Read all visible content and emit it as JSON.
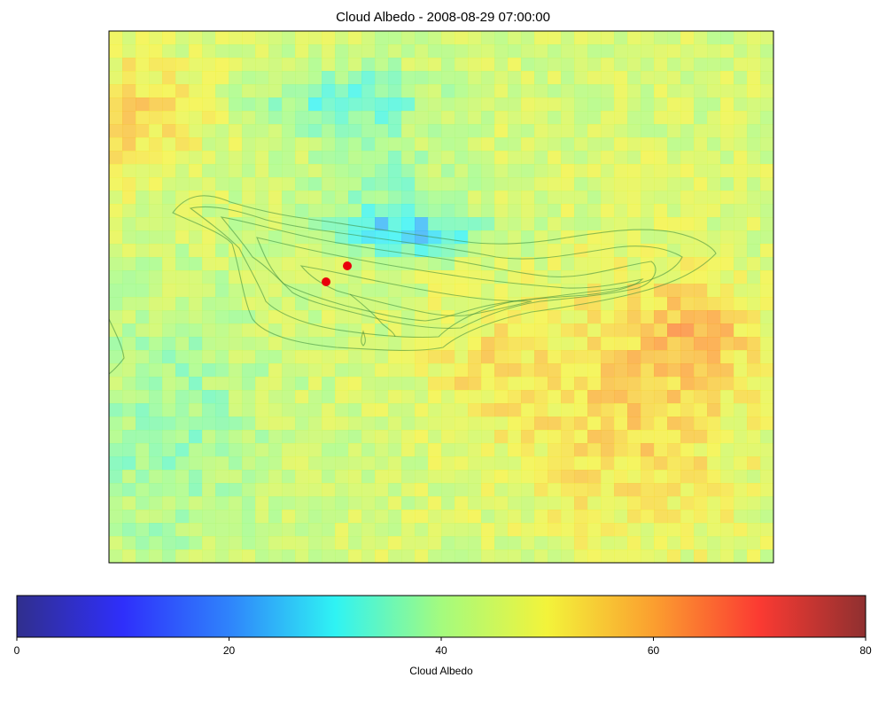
{
  "chart_data": [
    {
      "type": "heatmap",
      "title": "Cloud Albedo - 2008-08-29 07:00:00",
      "value_range": [
        0,
        80
      ],
      "colormap": "jet",
      "grid": false,
      "field_summary": {
        "grid_columns": 50,
        "grid_rows": 40,
        "description_values": [
          {
            "region": "north-west upper",
            "approx_value": 53
          },
          {
            "region": "north-central low patch",
            "approx_value": 22
          },
          {
            "region": "center band",
            "approx_value": 23
          },
          {
            "region": "south-west",
            "approx_value": 38
          },
          {
            "region": "south-east",
            "approx_value": 58
          },
          {
            "region": "east",
            "approx_value": 60
          }
        ]
      },
      "markers": [
        {
          "label": "",
          "color": "#e8000b",
          "lon_frac": 0.3267,
          "lat_frac": 0.4717
        },
        {
          "label": "",
          "color": "#e8000b",
          "lon_frac": 0.3587,
          "lat_frac": 0.4417
        }
      ],
      "overlay": {
        "type": "terrain-contours",
        "color": "#3a8a3a"
      }
    },
    {
      "type": "colorbar",
      "label": "Cloud Albedo",
      "ticks": [
        "0",
        "20",
        "40",
        "60",
        "80"
      ],
      "ticks_values": [
        0,
        20,
        40,
        60,
        80
      ],
      "range": [
        0,
        80
      ],
      "colormap": "jet"
    }
  ]
}
